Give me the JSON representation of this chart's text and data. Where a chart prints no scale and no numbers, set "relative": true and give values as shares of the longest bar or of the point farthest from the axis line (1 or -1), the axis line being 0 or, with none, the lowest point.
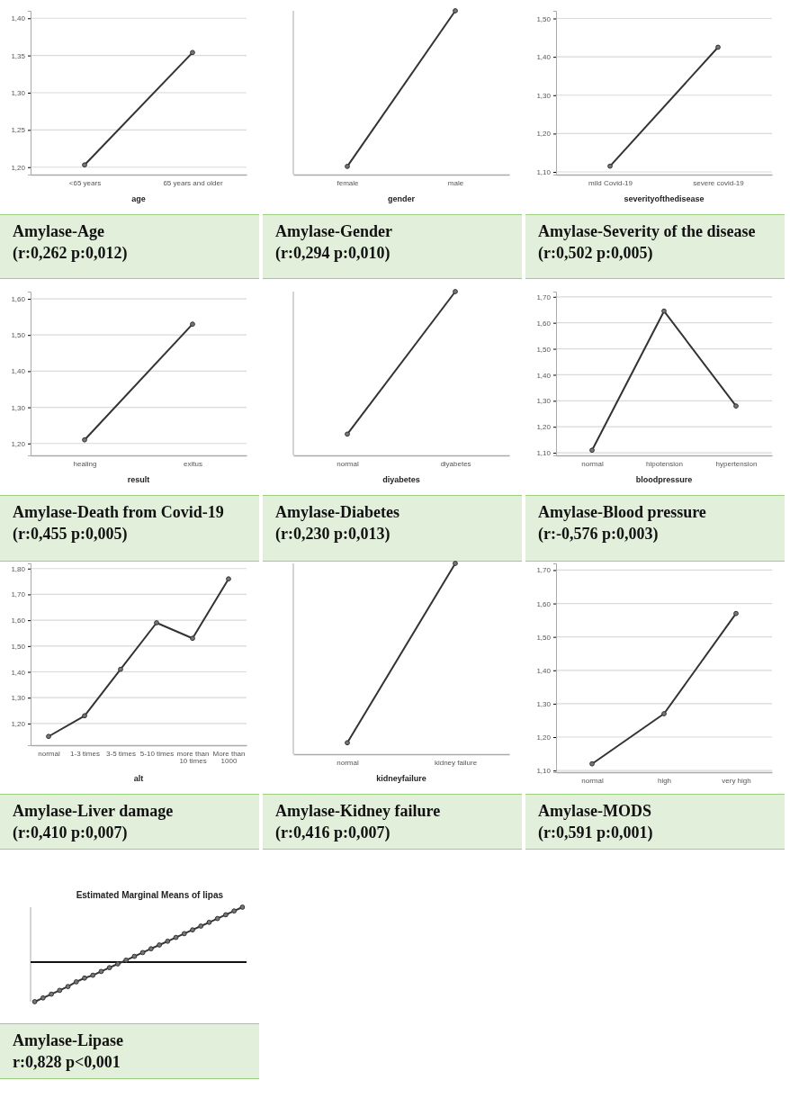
{
  "chart_data": [
    {
      "type": "line",
      "categories": [
        "<65 years",
        "65 years and older"
      ],
      "values": [
        1.203,
        1.354
      ],
      "color": "#333333",
      "xlabel": "age",
      "ylim": [
        1.19,
        1.41
      ],
      "yticks": [
        {
          "value": 1.2,
          "label": "1,20"
        },
        {
          "value": 1.25,
          "label": "1,25"
        },
        {
          "value": 1.3,
          "label": "1,30"
        },
        {
          "value": 1.35,
          "label": "1,35"
        },
        {
          "value": 1.4,
          "label": "1,40"
        }
      ],
      "grid": "y",
      "marker": "circle",
      "annotations": [
        "Amylase-Age",
        "(r:0,262 p:0,012)"
      ]
    },
    {
      "type": "line",
      "categories": [
        "female",
        "male"
      ],
      "values": [
        0.05,
        1
      ],
      "color": "#333333",
      "xlabel": "gender",
      "relative": true,
      "marker": "circle",
      "annotations": [
        "Amylase-Gender",
        "(r:0,294 p:0,010)"
      ]
    },
    {
      "type": "line",
      "categories": [
        "mild Covid-19",
        "severe covid-19"
      ],
      "values": [
        1.115,
        1.425
      ],
      "color": "#333333",
      "xlabel": "severityofthedisease",
      "ylim": [
        1.093,
        1.52
      ],
      "yticks": [
        {
          "value": 1.1,
          "label": "1,10"
        },
        {
          "value": 1.2,
          "label": "1,20"
        },
        {
          "value": 1.3,
          "label": "1,30"
        },
        {
          "value": 1.4,
          "label": "1,40"
        },
        {
          "value": 1.5,
          "label": "1,50"
        }
      ],
      "grid": "y",
      "marker": "circle",
      "annotations": [
        "Amylase-Severity of the disease",
        "(r:0,502 p:0,005)"
      ]
    },
    {
      "type": "line",
      "categories": [
        "healing",
        "exitus"
      ],
      "values": [
        1.21,
        1.53
      ],
      "color": "#333333",
      "xlabel": "result",
      "ylim": [
        1.167,
        1.62
      ],
      "yticks": [
        {
          "value": 1.2,
          "label": "1,20"
        },
        {
          "value": 1.3,
          "label": "1,30"
        },
        {
          "value": 1.4,
          "label": "1,40"
        },
        {
          "value": 1.5,
          "label": "1,50"
        },
        {
          "value": 1.6,
          "label": "1,60"
        }
      ],
      "grid": "y",
      "marker": "circle",
      "annotations": [
        "Amylase-Death from Covid-19",
        "(r:0,455 p:0,005)"
      ]
    },
    {
      "type": "line",
      "categories": [
        "normal",
        "diyabetes"
      ],
      "values": [
        0.13,
        1
      ],
      "color": "#333333",
      "xlabel": "diyabetes",
      "relative": true,
      "marker": "circle",
      "annotations": [
        "Amylase-Diabetes",
        "(r:0,230 p:0,013)"
      ]
    },
    {
      "type": "line",
      "categories": [
        "normal",
        "hipotension",
        "hypertension"
      ],
      "values": [
        1.11,
        1.645,
        1.28
      ],
      "color": "#333333",
      "xlabel": "bloodpressure",
      "ylim": [
        1.09,
        1.72
      ],
      "yticks": [
        {
          "value": 1.1,
          "label": "1,10"
        },
        {
          "value": 1.2,
          "label": "1,20"
        },
        {
          "value": 1.3,
          "label": "1,30"
        },
        {
          "value": 1.4,
          "label": "1,40"
        },
        {
          "value": 1.5,
          "label": "1,50"
        },
        {
          "value": 1.6,
          "label": "1,60"
        },
        {
          "value": 1.7,
          "label": "1,70"
        }
      ],
      "grid": "y",
      "marker": "circle",
      "annotations": [
        "Amylase-Blood pressure",
        "(r:-0,576 p:0,003)"
      ]
    },
    {
      "type": "line",
      "categories": [
        "normal",
        "1-3 times",
        "3-5 times",
        "5-10 times",
        "more than 10 times",
        "More than 1000"
      ],
      "values": [
        1.15,
        1.23,
        1.41,
        1.59,
        1.53,
        1.76
      ],
      "color": "#333333",
      "xlabel": "alt",
      "ylim": [
        1.116,
        1.82
      ],
      "yticks": [
        {
          "value": 1.2,
          "label": "1,20"
        },
        {
          "value": 1.3,
          "label": "1,30"
        },
        {
          "value": 1.4,
          "label": "1,40"
        },
        {
          "value": 1.5,
          "label": "1,50"
        },
        {
          "value": 1.6,
          "label": "1,60"
        },
        {
          "value": 1.7,
          "label": "1,70"
        },
        {
          "value": 1.8,
          "label": "1,80"
        }
      ],
      "grid": "y",
      "marker": "circle",
      "annotations": [
        "Amylase-Liver damage",
        "(r:0,410 p:0,007)"
      ]
    },
    {
      "type": "line",
      "categories": [
        "normal",
        "kidney failure"
      ],
      "values": [
        0.06,
        1
      ],
      "color": "#333333",
      "xlabel": "kidneyfailure",
      "relative": true,
      "marker": "circle",
      "annotations": [
        "Amylase-Kidney failure",
        "(r:0,416 p:0,007)"
      ]
    },
    {
      "type": "line",
      "categories": [
        "normal",
        "high",
        "very high"
      ],
      "values": [
        1.12,
        1.27,
        1.57
      ],
      "color": "#333333",
      "ylim": [
        1.095,
        1.72
      ],
      "yticks": [
        {
          "value": 1.1,
          "label": "1,10"
        },
        {
          "value": 1.2,
          "label": "1,20"
        },
        {
          "value": 1.3,
          "label": "1,30"
        },
        {
          "value": 1.4,
          "label": "1,40"
        },
        {
          "value": 1.5,
          "label": "1,50"
        },
        {
          "value": 1.6,
          "label": "1,60"
        },
        {
          "value": 1.7,
          "label": "1,70"
        }
      ],
      "grid": "y",
      "marker": "circle",
      "annotations": [
        "Amylase-MODS",
        "(r:0,591 p:0,001)"
      ]
    },
    {
      "type": "line",
      "title": "Estimated Marginal Means of lipas",
      "categories": [
        null,
        null,
        null,
        null,
        null,
        null,
        null,
        null,
        null,
        null,
        null,
        null,
        null,
        null,
        null,
        null,
        null,
        null,
        null,
        null,
        null,
        null,
        null,
        null,
        null,
        null
      ],
      "values": [
        0,
        0.04,
        0.08,
        0.12,
        0.16,
        0.21,
        0.25,
        0.28,
        0.32,
        0.36,
        0.4,
        0.44,
        0.48,
        0.52,
        0.56,
        0.6,
        0.64,
        0.68,
        0.72,
        0.76,
        0.8,
        0.84,
        0.88,
        0.92,
        0.96,
        1
      ],
      "color": "#333333",
      "relative": true,
      "marker": "circle",
      "ref_lines": [
        {
          "axis": "y",
          "value": 0.42,
          "color": "#111111"
        }
      ],
      "annotations": [
        "Amylase-Lipase",
        "r:0,828  p<0,001"
      ]
    }
  ]
}
